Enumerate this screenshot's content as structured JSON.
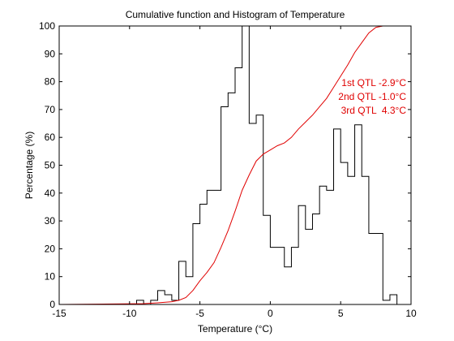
{
  "chart_data": {
    "type": "line",
    "title": "Cumulative function and Histogram of Temperature",
    "xlabel": "Temperature (°C)",
    "ylabel": "Percentage (%)",
    "xlim": [
      -15,
      10
    ],
    "ylim": [
      0,
      100
    ],
    "xticks": [
      -15,
      -10,
      -5,
      0,
      5,
      10
    ],
    "yticks": [
      0,
      10,
      20,
      30,
      40,
      50,
      60,
      70,
      80,
      90,
      100
    ],
    "grid": false,
    "series": [
      {
        "kind": "histogram-stairs",
        "color": "#000000",
        "edges": [
          -9.5,
          -9,
          -8.5,
          -8,
          -7.5,
          -7,
          -6.5,
          -6,
          -5.5,
          -5,
          -4.5,
          -4,
          -3.5,
          -3,
          -2.5,
          -2,
          -1.5,
          -1,
          -0.5,
          0,
          0.5,
          1,
          1.5,
          2,
          2.5,
          3,
          3.5,
          4,
          4.5,
          5,
          5.5,
          6,
          6.5,
          7,
          7.5,
          8,
          8.5,
          9
        ],
        "values": [
          1.5,
          0,
          1.5,
          5,
          3.5,
          1.5,
          15.5,
          10,
          29,
          36,
          41,
          41,
          71,
          76,
          85,
          100,
          65,
          68,
          32,
          20.5,
          20.5,
          13.5,
          20.5,
          35.5,
          27,
          32.5,
          42.5,
          41,
          63,
          51,
          46,
          64.5,
          46,
          25.5,
          25.5,
          1.5,
          3.5
        ]
      },
      {
        "kind": "cumulative",
        "color": "#e00000",
        "x": [
          -15,
          -9,
          -8,
          -7,
          -6.5,
          -6,
          -5.5,
          -5,
          -4.5,
          -4,
          -3.5,
          -3,
          -2.5,
          -2,
          -1.5,
          -1,
          -0.5,
          0,
          0.5,
          1,
          1.5,
          2,
          2.5,
          3,
          3.5,
          4,
          4.5,
          5,
          5.5,
          6,
          6.5,
          7,
          7.5,
          8,
          9,
          10
        ],
        "y": [
          0,
          0.3,
          0.6,
          1,
          1.5,
          2.5,
          5,
          8.5,
          11.5,
          15,
          20.5,
          26.5,
          33.5,
          41,
          46.5,
          51.5,
          54,
          55.5,
          57,
          58,
          60,
          63,
          65.5,
          68,
          71,
          74,
          78,
          82,
          86,
          90.5,
          94,
          97.5,
          99.5,
          100,
          100,
          100
        ]
      }
    ],
    "annotations": [
      {
        "text": "1st QTL -2.9°C",
        "color": "#e00000"
      },
      {
        "text": "2nd QTL -1.0°C",
        "color": "#e00000"
      },
      {
        "text": "3rd QTL  4.3°C",
        "color": "#e00000"
      }
    ]
  }
}
